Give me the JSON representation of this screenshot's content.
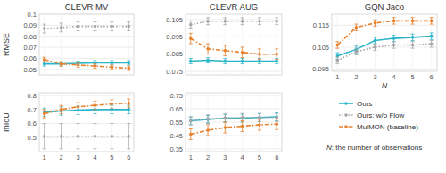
{
  "chart_data": [
    {
      "type": "line",
      "title": "CLEVR MV",
      "y_label": "RMSE",
      "x": [
        1,
        2,
        3,
        4,
        5,
        6
      ],
      "xlim": [
        0.7,
        6.3
      ],
      "xticks": [
        1,
        2,
        3,
        4,
        5,
        6
      ],
      "ylim": [
        0.045,
        0.1
      ],
      "yticks": [
        0.05,
        0.06,
        0.07,
        0.08,
        0.09,
        0.1
      ],
      "grid": true,
      "tick_labels": "y",
      "series": [
        {
          "name": "Ours",
          "color": "#2bb5c9",
          "line_style": "solid",
          "marker": "circle",
          "values": [
            0.055,
            0.055,
            0.0555,
            0.056,
            0.056,
            0.056
          ],
          "errors": [
            0.002,
            0.002,
            0.002,
            0.002,
            0.002,
            0.002
          ]
        },
        {
          "name": "Ours: w/o Flow",
          "color": "#a6a6a6",
          "line_style": "dotted",
          "marker": "circle",
          "values": [
            0.087,
            0.088,
            0.089,
            0.089,
            0.089,
            0.089
          ],
          "errors": [
            0.004,
            0.004,
            0.004,
            0.004,
            0.004,
            0.004
          ]
        },
        {
          "name": "MulMON (baseline)",
          "color": "#e8822f",
          "line_style": "dashdot",
          "marker": "circle",
          "values": [
            0.059,
            0.055,
            0.054,
            0.053,
            0.052,
            0.051
          ],
          "errors": [
            0.002,
            0.002,
            0.002,
            0.002,
            0.002,
            0.002
          ]
        }
      ]
    },
    {
      "type": "line",
      "title": "CLEVR AUG",
      "x": [
        1,
        2,
        3,
        4,
        5,
        6
      ],
      "xlim": [
        0.7,
        6.3
      ],
      "xticks": [
        1,
        2,
        3,
        4,
        5,
        6
      ],
      "ylim": [
        0.073,
        0.108
      ],
      "yticks": [
        0.075,
        0.085,
        0.095,
        0.105
      ],
      "grid": true,
      "tick_labels": "y",
      "series": [
        {
          "name": "Ours",
          "color": "#2bb5c9",
          "line_style": "solid",
          "marker": "circle",
          "values": [
            0.081,
            0.0815,
            0.081,
            0.081,
            0.081,
            0.081
          ],
          "errors": [
            0.0015,
            0.0015,
            0.0015,
            0.0015,
            0.0015,
            0.0015
          ]
        },
        {
          "name": "Ours: w/o Flow",
          "color": "#a6a6a6",
          "line_style": "dotted",
          "marker": "circle",
          "values": [
            0.102,
            0.104,
            0.104,
            0.104,
            0.104,
            0.104
          ],
          "errors": [
            0.002,
            0.002,
            0.002,
            0.002,
            0.002,
            0.002
          ]
        },
        {
          "name": "MulMON (baseline)",
          "color": "#e8822f",
          "line_style": "dashdot",
          "marker": "circle",
          "values": [
            0.094,
            0.088,
            0.087,
            0.086,
            0.085,
            0.085
          ],
          "errors": [
            0.003,
            0.003,
            0.003,
            0.003,
            0.003,
            0.003
          ]
        }
      ]
    },
    {
      "type": "line",
      "title": "GQN Jaco",
      "x_label": "N",
      "x": [
        1,
        2,
        3,
        4,
        5,
        6
      ],
      "xlim": [
        0.7,
        6.3
      ],
      "xticks": [
        1,
        2,
        3,
        4,
        5,
        6
      ],
      "ylim": [
        0.094,
        0.12
      ],
      "yticks": [
        0.095,
        0.105,
        0.115
      ],
      "grid": true,
      "legend": "right",
      "annotation": "N: the number of observations",
      "series": [
        {
          "name": "Ours",
          "color": "#2bb5c9",
          "line_style": "solid",
          "marker": "circle",
          "values": [
            0.101,
            0.104,
            0.108,
            0.109,
            0.1095,
            0.11
          ],
          "errors": [
            0.0015,
            0.0015,
            0.0015,
            0.0015,
            0.0015,
            0.0015
          ]
        },
        {
          "name": "Ours: w/o Flow",
          "color": "#a6a6a6",
          "line_style": "dotted",
          "marker": "circle",
          "values": [
            0.099,
            0.103,
            0.105,
            0.106,
            0.106,
            0.1065
          ],
          "errors": [
            0.0015,
            0.0015,
            0.0015,
            0.0015,
            0.0015,
            0.0015
          ]
        },
        {
          "name": "MulMON (baseline)",
          "color": "#e8822f",
          "line_style": "dashdot",
          "marker": "circle",
          "values": [
            0.106,
            0.114,
            0.116,
            0.117,
            0.117,
            0.117
          ],
          "errors": [
            0.0015,
            0.0015,
            0.0015,
            0.0015,
            0.0015,
            0.0015
          ]
        }
      ]
    },
    {
      "type": "line",
      "y_label": "mIoU",
      "x": [
        1,
        2,
        3,
        4,
        5,
        6
      ],
      "xlim": [
        0.7,
        6.3
      ],
      "xticks": [
        1,
        2,
        3,
        4,
        5,
        6
      ],
      "ylim": [
        0.4,
        0.82
      ],
      "yticks": [
        0.5,
        0.6,
        0.7,
        0.8
      ],
      "grid": true,
      "series": [
        {
          "name": "Ours",
          "color": "#2bb5c9",
          "line_style": "solid",
          "marker": "circle",
          "values": [
            0.68,
            0.69,
            0.695,
            0.7,
            0.7,
            0.7
          ],
          "errors": [
            0.03,
            0.03,
            0.03,
            0.03,
            0.03,
            0.03
          ]
        },
        {
          "name": "Ours: w/o Flow",
          "color": "#a6a6a6",
          "line_style": "dotted",
          "marker": "circle",
          "values": [
            0.51,
            0.51,
            0.51,
            0.51,
            0.51,
            0.51
          ],
          "errors": [
            0.09,
            0.09,
            0.09,
            0.09,
            0.09,
            0.09
          ]
        },
        {
          "name": "MulMON (baseline)",
          "color": "#e8822f",
          "line_style": "dashdot",
          "marker": "circle",
          "values": [
            0.67,
            0.7,
            0.72,
            0.73,
            0.74,
            0.745
          ],
          "errors": [
            0.03,
            0.03,
            0.03,
            0.03,
            0.03,
            0.03
          ]
        }
      ]
    },
    {
      "type": "line",
      "x": [
        1,
        2,
        3,
        4,
        5,
        6
      ],
      "xlim": [
        0.7,
        6.3
      ],
      "xticks": [
        1,
        2,
        3,
        4,
        5,
        6
      ],
      "ylim": [
        0.33,
        0.77
      ],
      "yticks": [
        0.35,
        0.45,
        0.55,
        0.65,
        0.75
      ],
      "grid": true,
      "series": [
        {
          "name": "Ours",
          "color": "#2bb5c9",
          "line_style": "solid",
          "marker": "circle",
          "values": [
            0.56,
            0.57,
            0.58,
            0.58,
            0.585,
            0.59
          ],
          "errors": [
            0.03,
            0.03,
            0.03,
            0.03,
            0.03,
            0.03
          ]
        },
        {
          "name": "Ours: w/o Flow",
          "color": "#a6a6a6",
          "line_style": "dotted",
          "marker": "circle",
          "values": [
            0.56,
            0.575,
            0.58,
            0.585,
            0.585,
            0.585
          ],
          "errors": [
            0.03,
            0.03,
            0.03,
            0.03,
            0.03,
            0.03
          ]
        },
        {
          "name": "MulMON (baseline)",
          "color": "#e8822f",
          "line_style": "dashdot",
          "marker": "circle",
          "values": [
            0.46,
            0.49,
            0.51,
            0.52,
            0.53,
            0.535
          ],
          "errors": [
            0.04,
            0.04,
            0.04,
            0.04,
            0.04,
            0.04
          ]
        }
      ]
    }
  ]
}
